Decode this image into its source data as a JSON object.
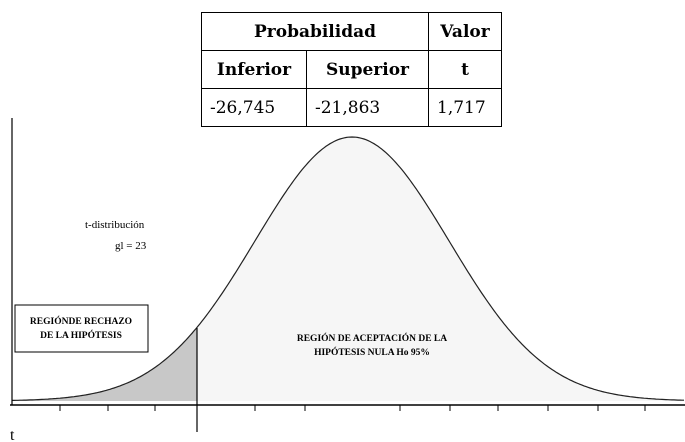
{
  "table": {
    "header": [
      "Probabilidad",
      "Valor"
    ],
    "subheader": [
      "Inferior",
      "Superior",
      "t"
    ],
    "rows": [
      [
        "-26,745",
        "-21,863",
        "1,717"
      ]
    ]
  },
  "diagram": {
    "distribution_label": "t-distribución",
    "df_label": "gl = 23",
    "rejection_label": [
      "REGIÓNDE RECHAZO",
      "DE LA HIPÓTESIS"
    ],
    "acceptance_label": [
      "REGIÓN DE ACEPTACIÓN DE LA",
      "HIPÓTESIS NULA Ho 95%"
    ],
    "axis_label": "t"
  }
}
